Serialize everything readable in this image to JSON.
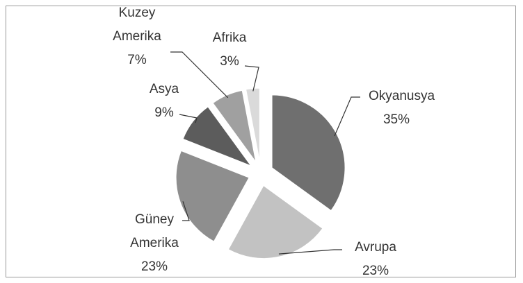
{
  "chart_data": {
    "type": "pie",
    "categories": [
      "Okyanusya",
      "Avrupa",
      "Güney Amerika",
      "Asya",
      "Kuzey Amerika",
      "Afrika"
    ],
    "values": [
      35,
      23,
      23,
      9,
      7,
      3
    ],
    "value_labels": [
      "35%",
      "23%",
      "23%",
      "9%",
      "7%",
      "3%"
    ],
    "colors": [
      "#6f6f6f",
      "#c2c2c2",
      "#8e8e8e",
      "#5c5c5c",
      "#a0a0a0",
      "#dadada"
    ]
  }
}
